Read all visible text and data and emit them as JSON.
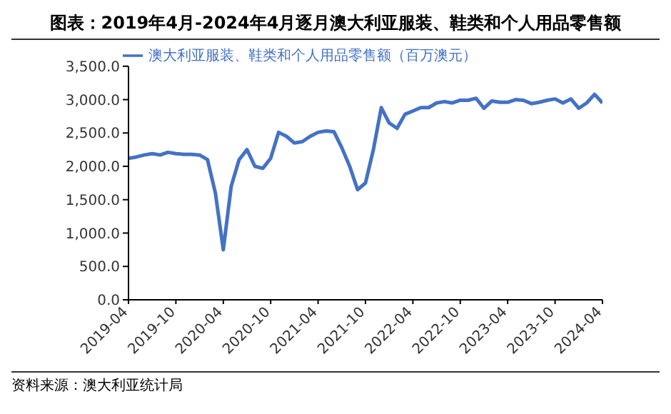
{
  "chart_data": {
    "type": "line",
    "title": "图表：2019年4月-2024年4月逐月澳大利亚服装、鞋类和个人用品零售额",
    "categories": [
      "2019-04",
      null,
      null,
      null,
      null,
      null,
      "2019-10",
      null,
      null,
      null,
      null,
      null,
      "2020-04",
      null,
      null,
      null,
      null,
      null,
      "2020-10",
      null,
      null,
      null,
      null,
      null,
      "2021-04",
      null,
      null,
      null,
      null,
      null,
      "2021-10",
      null,
      null,
      null,
      null,
      null,
      "2022-04",
      null,
      null,
      null,
      null,
      null,
      "2022-10",
      null,
      null,
      null,
      null,
      null,
      "2023-04",
      null,
      null,
      null,
      null,
      null,
      "2023-10",
      null,
      null,
      null,
      null,
      null,
      "2024-04"
    ],
    "series": [
      {
        "name": "澳大利亚服装、鞋类和个人用品零售额（百万澳元）",
        "color": "#4472c4",
        "values": [
          2120,
          2140,
          2170,
          2190,
          2170,
          2210,
          2190,
          2180,
          2180,
          2170,
          2100,
          1600,
          750,
          1700,
          2100,
          2250,
          2000,
          1970,
          2120,
          2510,
          2450,
          2350,
          2370,
          2450,
          2510,
          2530,
          2520,
          2280,
          2000,
          1650,
          1750,
          2250,
          2880,
          2650,
          2570,
          2780,
          2830,
          2880,
          2880,
          2950,
          2970,
          2950,
          2990,
          2990,
          3020,
          2870,
          2980,
          2960,
          2960,
          3000,
          2990,
          2940,
          2960,
          2990,
          3010,
          2950,
          3010,
          2870,
          2950,
          3080,
          2950
        ]
      }
    ],
    "ylim": [
      0,
      3500
    ],
    "yticks": [
      {
        "value": 0,
        "label": "0.0"
      },
      {
        "value": 500,
        "label": "500.0"
      },
      {
        "value": 1000,
        "label": "1,000.0"
      },
      {
        "value": 1500,
        "label": "1,500.0"
      },
      {
        "value": 2000,
        "label": "2,000.0"
      },
      {
        "value": 2500,
        "label": "2,500.0"
      },
      {
        "value": 3000,
        "label": "3,000.0"
      },
      {
        "value": 3500,
        "label": "3,500.0"
      }
    ],
    "grid": false,
    "legend": "top",
    "marker": "none",
    "line_style": "solid",
    "annotations": [
      "资料来源：澳大利亚统计局"
    ]
  }
}
